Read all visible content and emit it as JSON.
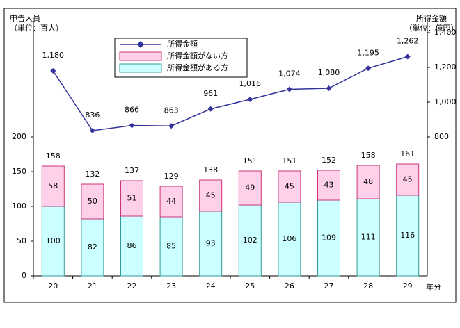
{
  "chart_data": {
    "type": "bar-line",
    "y_label": [
      "申告人員",
      "（単位：百人）"
    ],
    "y2_label": [
      "所得金額",
      "（単位：億円）"
    ],
    "x_label": "年分",
    "categories": [
      "20",
      "21",
      "22",
      "23",
      "24",
      "25",
      "26",
      "27",
      "28",
      "29"
    ],
    "ylim": [
      0,
      350
    ],
    "yticks": [
      0,
      50,
      100,
      150,
      200
    ],
    "y2lim": [
      0,
      1400
    ],
    "y2ticks": [
      800,
      {
        "value": 1000,
        "label": "1,000"
      },
      {
        "value": 1200,
        "label": "1,200"
      },
      {
        "value": 1400,
        "label": "1,400"
      }
    ],
    "series": [
      {
        "name": "所得金額",
        "type": "line",
        "axis": "y2",
        "color": "#333399",
        "values": [
          1180,
          836,
          866,
          863,
          961,
          1016,
          1074,
          1080,
          1195,
          1262
        ],
        "value_labels": [
          "1,180",
          "836",
          "866",
          "863",
          "961",
          "1,016",
          "1,074",
          "1,080",
          "1,195",
          "1,262"
        ]
      },
      {
        "name": "所得金額がない方",
        "type": "bar",
        "color": "#ffd0ea",
        "stroke": "#cc3377",
        "values": [
          58,
          50,
          51,
          44,
          45,
          49,
          45,
          43,
          48,
          45
        ]
      },
      {
        "name": "所得金額がある方",
        "type": "bar",
        "color": "#ccffff",
        "stroke": "#339999",
        "values": [
          100,
          82,
          86,
          85,
          93,
          102,
          106,
          109,
          111,
          116
        ]
      }
    ],
    "totals": [
      158,
      132,
      137,
      129,
      138,
      151,
      151,
      152,
      158,
      161
    ]
  }
}
